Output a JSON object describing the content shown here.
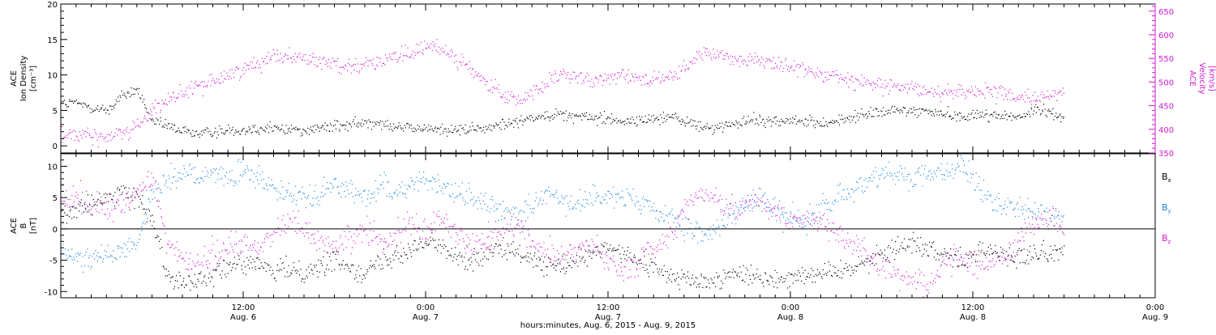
{
  "colors": {
    "black": "#000000",
    "magenta": "#d11ad1",
    "blue": "#1a86e0"
  },
  "x_axis": {
    "title": "hours:minutes, Aug. 6, 2015 - Aug. 9, 2015",
    "domain_hours": [
      0,
      72
    ],
    "ticks": [
      {
        "hour": 12,
        "time": "12:00",
        "date": "Aug. 6"
      },
      {
        "hour": 24,
        "time": "0:00",
        "date": "Aug. 7"
      },
      {
        "hour": 36,
        "time": "12:00",
        "date": "Aug. 7"
      },
      {
        "hour": 48,
        "time": "0:00",
        "date": "Aug. 8"
      },
      {
        "hour": 60,
        "time": "12:00",
        "date": "Aug. 8"
      },
      {
        "hour": 72,
        "time": "0:00",
        "date": "Aug. 9"
      }
    ]
  },
  "chart_data": [
    {
      "type": "scatter",
      "panel": "top",
      "ylabel_left": [
        "ACE",
        "Ion Density",
        "[cm⁻³]"
      ],
      "ylabel_right": [
        "ACE",
        "Velocity",
        "[km/s]"
      ],
      "ylim_left": [
        -1,
        20
      ],
      "yticks_left": [
        "0",
        "5",
        "10",
        "15",
        "20"
      ],
      "ylim_right": [
        350,
        665
      ],
      "yticks_right": [
        "350",
        "400",
        "450",
        "500",
        "550",
        "600",
        "650"
      ],
      "series": [
        {
          "color": "black",
          "axis": "left",
          "spread": 0.7,
          "x": [
            0,
            1,
            2,
            3,
            4,
            5,
            6,
            7,
            8,
            9,
            10,
            11,
            12,
            13,
            14,
            15,
            16,
            17,
            18,
            19,
            20,
            21,
            22,
            23,
            24,
            25,
            26,
            27,
            28,
            29,
            30,
            31,
            32,
            33,
            34,
            35,
            36,
            37,
            38,
            39,
            40,
            41,
            42,
            43,
            44,
            45,
            46,
            47,
            48,
            49,
            50,
            51,
            52,
            53,
            54,
            55,
            56,
            57,
            58,
            59,
            60,
            61,
            62,
            63,
            64,
            65,
            66
          ],
          "y": [
            6,
            6,
            5.5,
            5,
            7,
            8,
            3.5,
            2.8,
            2.2,
            1.8,
            2,
            2.3,
            2.4,
            2.4,
            2.6,
            2.4,
            2.3,
            2.5,
            2.8,
            3,
            3.3,
            3.5,
            2.8,
            2.5,
            2.5,
            2.4,
            2.3,
            2.4,
            2.5,
            3,
            3.5,
            4,
            4.5,
            4.5,
            4.2,
            4,
            4,
            3.5,
            3.5,
            4,
            4.2,
            3.5,
            2.8,
            2.5,
            3,
            3.5,
            3.8,
            3.5,
            3.5,
            3.5,
            3.3,
            3.5,
            4,
            4.5,
            4.8,
            5,
            5,
            5,
            4.6,
            4.2,
            4.3,
            4.5,
            4.3,
            4,
            5,
            5,
            4
          ]
        },
        {
          "color": "magenta",
          "axis": "right",
          "spread": 14,
          "x": [
            0,
            1,
            2,
            3,
            4,
            5,
            6,
            7,
            8,
            9,
            10,
            11,
            12,
            13,
            14,
            15,
            16,
            17,
            18,
            19,
            20,
            21,
            22,
            23,
            24,
            25,
            26,
            27,
            28,
            29,
            30,
            31,
            32,
            33,
            34,
            35,
            36,
            37,
            38,
            39,
            40,
            41,
            42,
            43,
            44,
            45,
            46,
            47,
            48,
            49,
            50,
            51,
            52,
            53,
            54,
            55,
            56,
            57,
            58,
            59,
            60,
            61,
            62,
            63,
            64,
            65,
            66
          ],
          "y": [
            390,
            390,
            385,
            383,
            395,
            410,
            440,
            465,
            475,
            490,
            505,
            515,
            530,
            540,
            560,
            555,
            550,
            545,
            540,
            535,
            540,
            545,
            550,
            560,
            575,
            570,
            555,
            525,
            495,
            475,
            460,
            480,
            500,
            515,
            510,
            500,
            510,
            520,
            510,
            505,
            510,
            525,
            560,
            560,
            555,
            550,
            545,
            540,
            530,
            525,
            520,
            515,
            505,
            500,
            495,
            490,
            485,
            483,
            480,
            480,
            482,
            478,
            475,
            470,
            465,
            470,
            480
          ]
        }
      ]
    },
    {
      "type": "scatter",
      "panel": "bottom",
      "ylabel_left": [
        "ACE",
        "B",
        "[nT]"
      ],
      "ylim": [
        -11,
        12
      ],
      "yticks": [
        "-10",
        "-5",
        "0",
        "5",
        "10"
      ],
      "legend_placement": "right",
      "zero_line": true,
      "series": [
        {
          "name": "B",
          "sub": "x",
          "color": "black",
          "spread": 1.4,
          "x": [
            0,
            1,
            2,
            3,
            4,
            5,
            6,
            7,
            8,
            9,
            10,
            11,
            12,
            13,
            14,
            15,
            16,
            17,
            18,
            19,
            20,
            21,
            22,
            23,
            24,
            25,
            26,
            27,
            28,
            29,
            30,
            31,
            32,
            33,
            34,
            35,
            36,
            37,
            38,
            39,
            40,
            41,
            42,
            43,
            44,
            45,
            46,
            47,
            48,
            49,
            50,
            51,
            52,
            53,
            54,
            55,
            56,
            57,
            58,
            59,
            60,
            61,
            62,
            63,
            64,
            65,
            66
          ],
          "y": [
            2,
            3,
            4,
            5,
            6,
            5,
            2,
            -7.5,
            -8,
            -8,
            -7,
            -6,
            -5,
            -6,
            -7,
            -6,
            -7,
            -6,
            -5,
            -6,
            -7,
            -5,
            -4,
            -3,
            -2,
            -3,
            -4,
            -5,
            -4,
            -3,
            -4,
            -5,
            -6,
            -6,
            -5,
            -4,
            -3,
            -4,
            -5,
            -6,
            -7.5,
            -8,
            -8.5,
            -8,
            -7,
            -7,
            -8,
            -8,
            -7.5,
            -7,
            -7,
            -7,
            -6,
            -5,
            -4,
            -3,
            -2,
            -3,
            -4,
            -5,
            -4,
            -3,
            -4,
            -5,
            -4,
            -4,
            -3
          ]
        },
        {
          "name": "B",
          "sub": "y",
          "color": "blue",
          "spread": 1.6,
          "x": [
            0,
            1,
            2,
            3,
            4,
            5,
            6,
            7,
            8,
            9,
            10,
            11,
            12,
            13,
            14,
            15,
            16,
            17,
            18,
            19,
            20,
            21,
            22,
            23,
            24,
            25,
            26,
            27,
            28,
            29,
            30,
            31,
            32,
            33,
            34,
            35,
            36,
            37,
            38,
            39,
            40,
            41,
            42,
            43,
            44,
            45,
            46,
            47,
            48,
            49,
            50,
            51,
            52,
            53,
            54,
            55,
            56,
            57,
            58,
            59,
            60,
            61,
            62,
            63,
            64,
            65,
            66
          ],
          "y": [
            -4,
            -4.5,
            -5,
            -4,
            -3,
            -2,
            6,
            8,
            9,
            8,
            9,
            8,
            9,
            8,
            7,
            6,
            5,
            6,
            7,
            6,
            5,
            7,
            6,
            7,
            8,
            7,
            6,
            5,
            4,
            3,
            2,
            4,
            6,
            5,
            4,
            5,
            6,
            5,
            4,
            3,
            2,
            0,
            -1,
            0,
            2,
            4,
            5,
            3,
            2,
            1,
            3,
            5,
            6,
            8,
            9,
            9,
            8,
            9,
            9,
            10,
            8,
            5,
            4,
            3,
            3,
            2,
            2
          ]
        },
        {
          "name": "B",
          "sub": "z",
          "color": "magenta",
          "spread": 1.8,
          "x": [
            0,
            1,
            2,
            3,
            4,
            5,
            6,
            7,
            8,
            9,
            10,
            11,
            12,
            13,
            14,
            15,
            16,
            17,
            18,
            19,
            20,
            21,
            22,
            23,
            24,
            25,
            26,
            27,
            28,
            29,
            30,
            31,
            32,
            33,
            34,
            35,
            36,
            37,
            38,
            39,
            40,
            41,
            42,
            43,
            44,
            45,
            46,
            47,
            48,
            49,
            50,
            51,
            52,
            53,
            54,
            55,
            56,
            57,
            58,
            59,
            60,
            61,
            62,
            63,
            64,
            65,
            66
          ],
          "y": [
            5,
            5,
            4,
            3,
            4,
            6,
            8,
            -2,
            -5,
            -6,
            -4,
            -3,
            -2,
            -3,
            -1,
            1,
            0,
            -2,
            -3,
            -1,
            0,
            -2,
            -1,
            1,
            0,
            2,
            -1,
            -3,
            -2,
            0,
            1,
            -2,
            -4,
            -5,
            -3,
            -2,
            -5,
            -7,
            -5,
            -3,
            -1,
            3,
            6,
            5,
            3,
            4,
            5,
            3,
            1,
            2,
            1,
            0,
            -2,
            -4,
            -6,
            -7,
            -8,
            -9,
            -6,
            -4,
            -5,
            -6,
            -4,
            -2,
            1,
            2,
            0
          ]
        }
      ]
    }
  ]
}
